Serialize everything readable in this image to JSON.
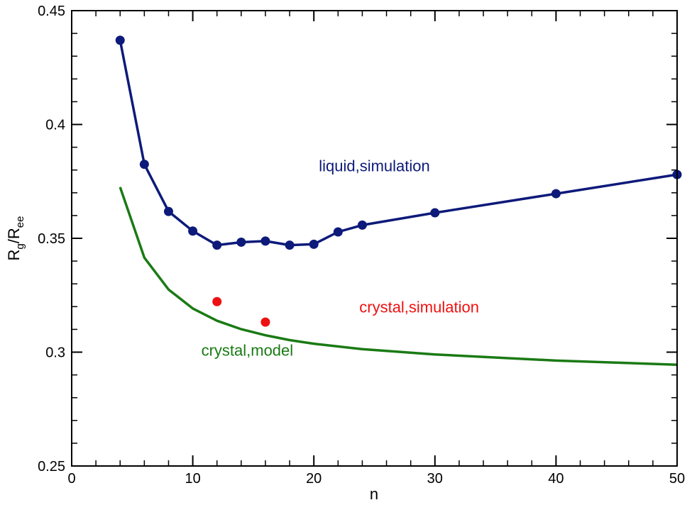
{
  "chart_data": {
    "type": "line",
    "title": "",
    "xlabel": "n",
    "ylabel": {
      "main": "R",
      "sub1": "g",
      "sep": "/R",
      "sub2": "ee"
    },
    "xlim": [
      0,
      50
    ],
    "ylim": [
      0.25,
      0.45
    ],
    "xticks": [
      0,
      10,
      20,
      30,
      40,
      50
    ],
    "xtick_labels": [
      "0",
      "10",
      "20",
      "30",
      "40",
      "50"
    ],
    "yticks": [
      0.25,
      0.3,
      0.35,
      0.4,
      0.45
    ],
    "ytick_labels": [
      "0.25",
      "0.3",
      "0.35",
      "0.4",
      "0.45"
    ],
    "x_minor_step": 2,
    "y_minor_step": 0.01,
    "grid": false,
    "legend": "none",
    "series": [
      {
        "name": "liquid,simulation",
        "kind": "line+markers",
        "color": "#0d1a7a",
        "x": [
          4,
          6,
          8,
          10,
          12,
          14,
          16,
          18,
          20,
          22,
          24,
          30,
          40,
          50
        ],
        "y": [
          0.437,
          0.3825,
          0.3618,
          0.3532,
          0.347,
          0.3483,
          0.3488,
          0.347,
          0.3474,
          0.3528,
          0.3558,
          0.3612,
          0.3696,
          0.378
        ]
      },
      {
        "name": "crystal,simulation",
        "kind": "markers",
        "color": "#ee1111",
        "x": [
          12,
          16
        ],
        "y": [
          0.3222,
          0.3132
        ]
      },
      {
        "name": "crystal,model",
        "kind": "line",
        "color": "#1a7a14",
        "x": [
          4,
          6,
          8,
          10,
          12,
          14,
          16,
          18,
          20,
          24,
          30,
          40,
          50
        ],
        "y": [
          0.3725,
          0.3415,
          0.3275,
          0.3192,
          0.3138,
          0.3101,
          0.3074,
          0.3053,
          0.3037,
          0.3013,
          0.299,
          0.2963,
          0.2945
        ]
      }
    ],
    "annotations": [
      {
        "text": "liquid,simulation",
        "x": 25,
        "y": 0.3795,
        "color": "#0d1a7a"
      },
      {
        "text": "crystal,simulation",
        "x": 28.7,
        "y": 0.3175,
        "color": "#ee1111"
      },
      {
        "text": "crystal,model",
        "x": 14.5,
        "y": 0.2985,
        "color": "#1a7a14"
      }
    ]
  }
}
